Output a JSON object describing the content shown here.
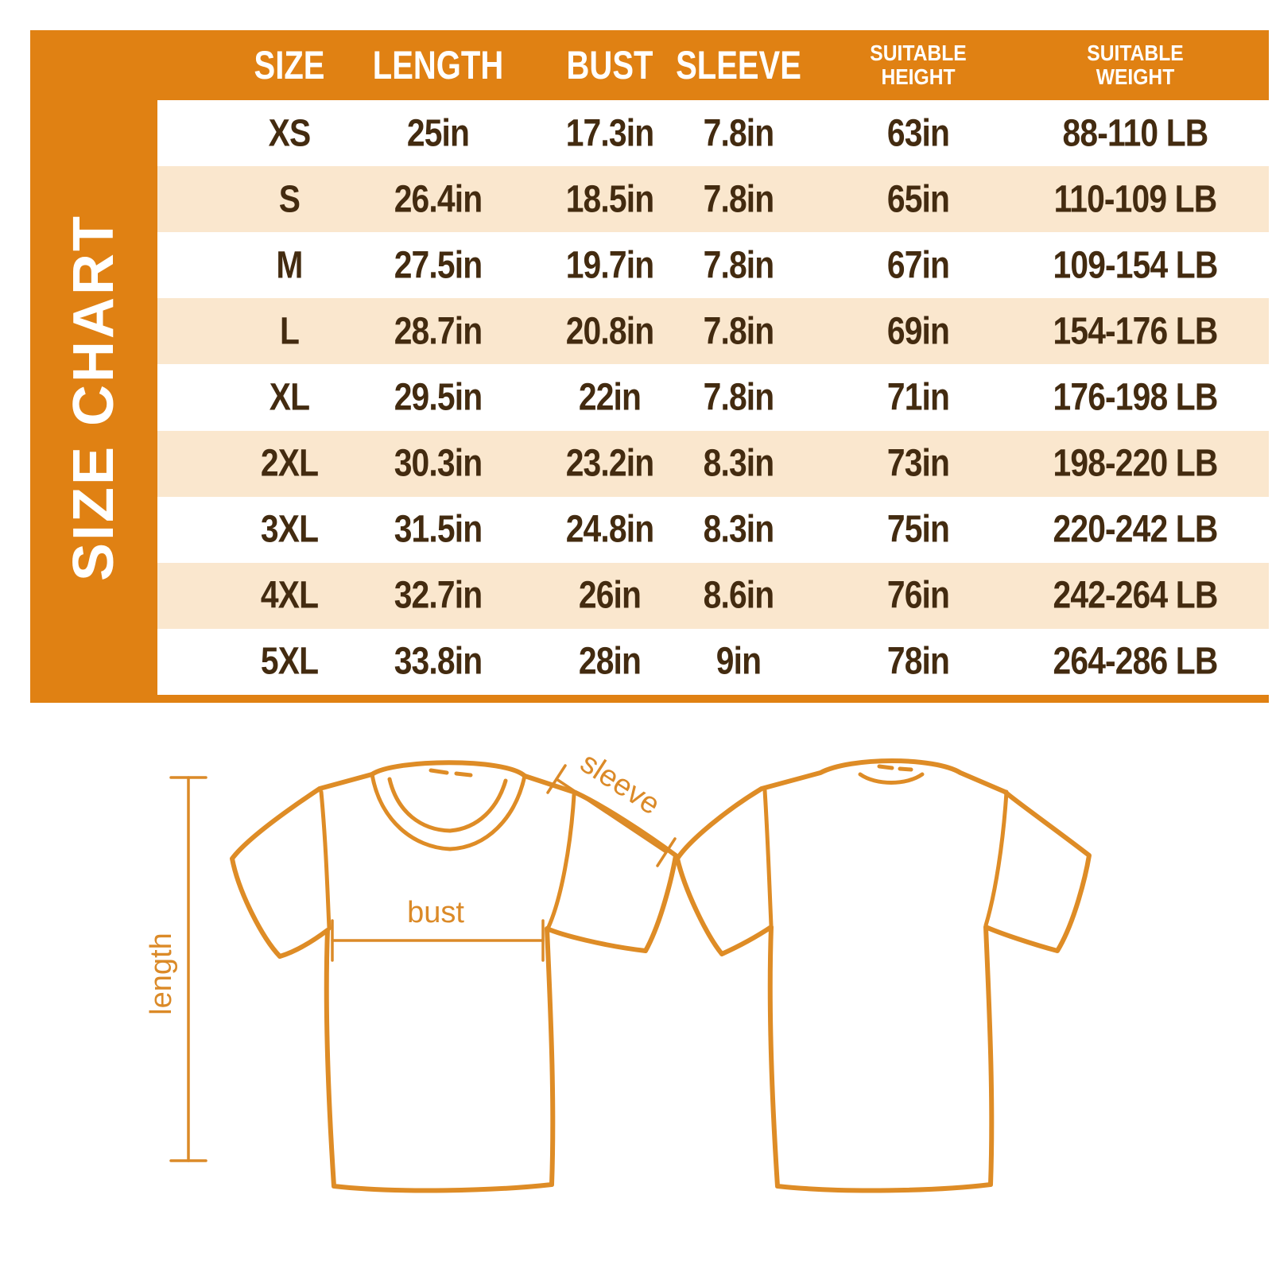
{
  "chart_data": {
    "type": "table",
    "title": "SIZE CHART",
    "columns": [
      "SIZE",
      "LENGTH",
      "BUST",
      "SLEEVE",
      "SUITABLE\nHEIGHT",
      "SUITABLE\nWEIGHT"
    ],
    "rows": [
      [
        "XS",
        "25in",
        "17.3in",
        "7.8in",
        "63in",
        "88-110 LB"
      ],
      [
        "S",
        "26.4in",
        "18.5in",
        "7.8in",
        "65in",
        "110-109 LB"
      ],
      [
        "M",
        "27.5in",
        "19.7in",
        "7.8in",
        "67in",
        "109-154 LB"
      ],
      [
        "L",
        "28.7in",
        "20.8in",
        "7.8in",
        "69in",
        "154-176 LB"
      ],
      [
        "XL",
        "29.5in",
        "22in",
        "7.8in",
        "71in",
        "176-198 LB"
      ],
      [
        "2XL",
        "30.3in",
        "23.2in",
        "8.3in",
        "73in",
        "198-220 LB"
      ],
      [
        "3XL",
        "31.5in",
        "24.8in",
        "8.3in",
        "75in",
        "220-242 LB"
      ],
      [
        "4XL",
        "32.7in",
        "26in",
        "8.6in",
        "76in",
        "242-264 LB"
      ],
      [
        "5XL",
        "33.8in",
        "28in",
        "9in",
        "78in",
        "264-286 LB"
      ]
    ]
  },
  "colors": {
    "accent_orange": "#E08113",
    "stripe_peach": "#FAE7CE",
    "value_brown": "#432B10",
    "outline_orange": "#DE8C26",
    "header_text": "#FFFFFF"
  },
  "diagram": {
    "length_label": "length",
    "bust_label": "bust",
    "sleeve_label": "sleeve"
  }
}
